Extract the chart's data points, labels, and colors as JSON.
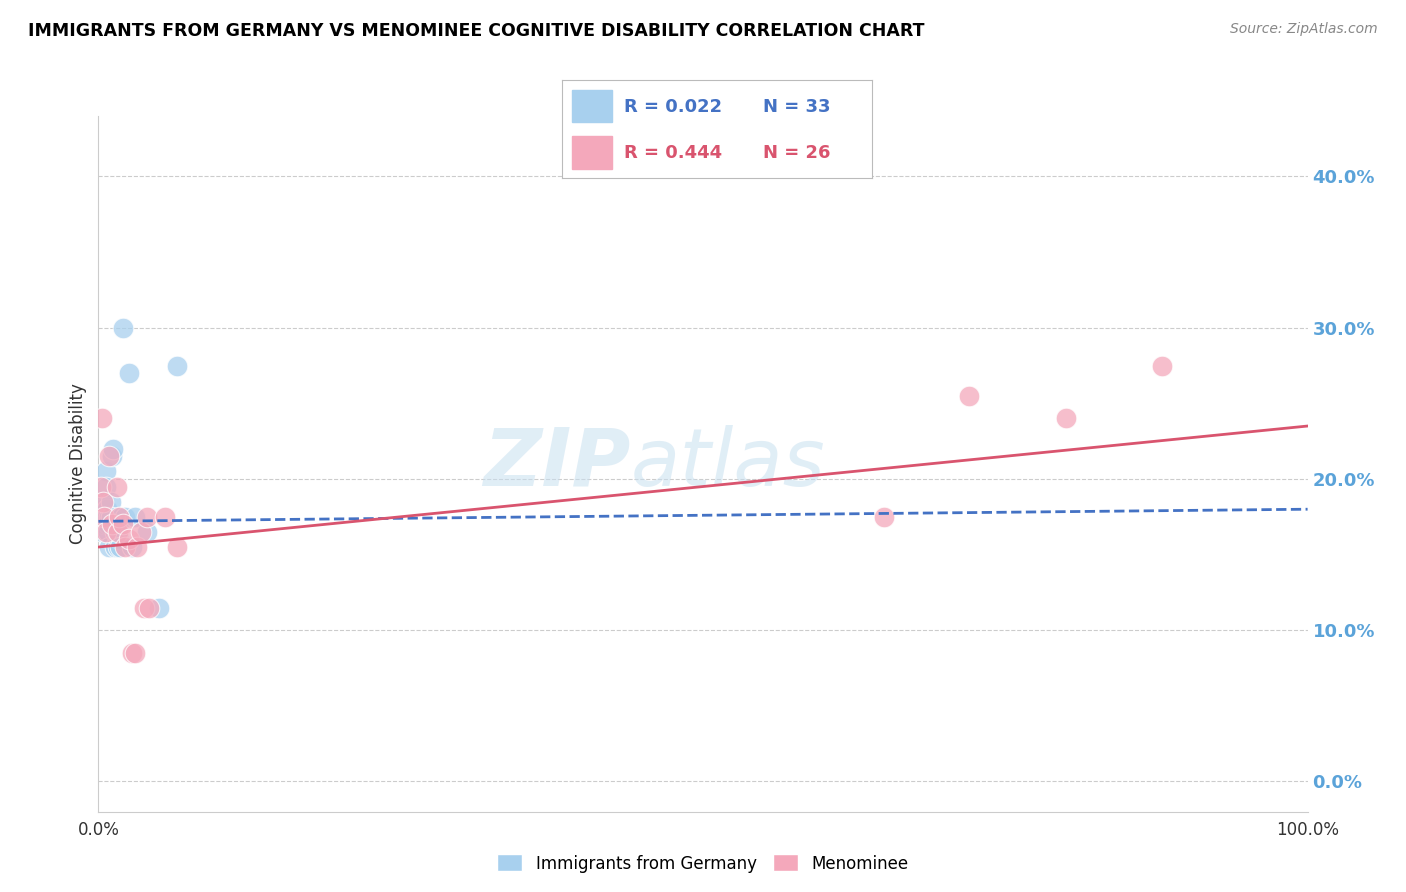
{
  "title": "IMMIGRANTS FROM GERMANY VS MENOMINEE COGNITIVE DISABILITY CORRELATION CHART",
  "source": "Source: ZipAtlas.com",
  "ylabel": "Cognitive Disability",
  "right_yticks": [
    0,
    10,
    20,
    30,
    40
  ],
  "xlim": [
    0.0,
    1.0
  ],
  "ylim": [
    -0.02,
    0.44
  ],
  "legend1_R": "0.022",
  "legend1_N": "33",
  "legend2_R": "0.444",
  "legend2_N": "26",
  "blue_color": "#A8D0EE",
  "pink_color": "#F4A8BB",
  "blue_line_color": "#4472C4",
  "pink_line_color": "#D9546E",
  "right_axis_color": "#5BA3D9",
  "watermark_zip": "ZIP",
  "watermark_atlas": "atlas",
  "blue_scatter_x": [
    0.002,
    0.003,
    0.004,
    0.005,
    0.005,
    0.006,
    0.006,
    0.007,
    0.007,
    0.008,
    0.008,
    0.009,
    0.009,
    0.01,
    0.01,
    0.011,
    0.012,
    0.013,
    0.014,
    0.014,
    0.015,
    0.016,
    0.017,
    0.018,
    0.019,
    0.02,
    0.022,
    0.025,
    0.028,
    0.03,
    0.04,
    0.05,
    0.065
  ],
  "blue_scatter_y": [
    0.175,
    0.18,
    0.165,
    0.185,
    0.17,
    0.205,
    0.195,
    0.18,
    0.175,
    0.17,
    0.165,
    0.175,
    0.155,
    0.185,
    0.175,
    0.215,
    0.22,
    0.17,
    0.165,
    0.155,
    0.165,
    0.155,
    0.16,
    0.155,
    0.175,
    0.3,
    0.175,
    0.27,
    0.155,
    0.175,
    0.165,
    0.115,
    0.275
  ],
  "pink_scatter_x": [
    0.002,
    0.003,
    0.004,
    0.005,
    0.006,
    0.009,
    0.011,
    0.015,
    0.016,
    0.017,
    0.02,
    0.022,
    0.025,
    0.028,
    0.03,
    0.032,
    0.035,
    0.038,
    0.04,
    0.042,
    0.055,
    0.065,
    0.65,
    0.72,
    0.8,
    0.88
  ],
  "pink_scatter_y": [
    0.195,
    0.24,
    0.185,
    0.175,
    0.165,
    0.215,
    0.17,
    0.195,
    0.165,
    0.175,
    0.17,
    0.155,
    0.16,
    0.085,
    0.085,
    0.155,
    0.165,
    0.115,
    0.175,
    0.115,
    0.175,
    0.155,
    0.175,
    0.255,
    0.24,
    0.275
  ],
  "blue_trend_x": [
    0.0,
    1.0
  ],
  "blue_trend_y": [
    0.172,
    0.18
  ],
  "pink_trend_x": [
    0.0,
    1.0
  ],
  "pink_trend_y": [
    0.155,
    0.235
  ],
  "xtick_positions": [
    0.0,
    1.0
  ],
  "xtick_labels": [
    "0.0%",
    "100.0%"
  ]
}
